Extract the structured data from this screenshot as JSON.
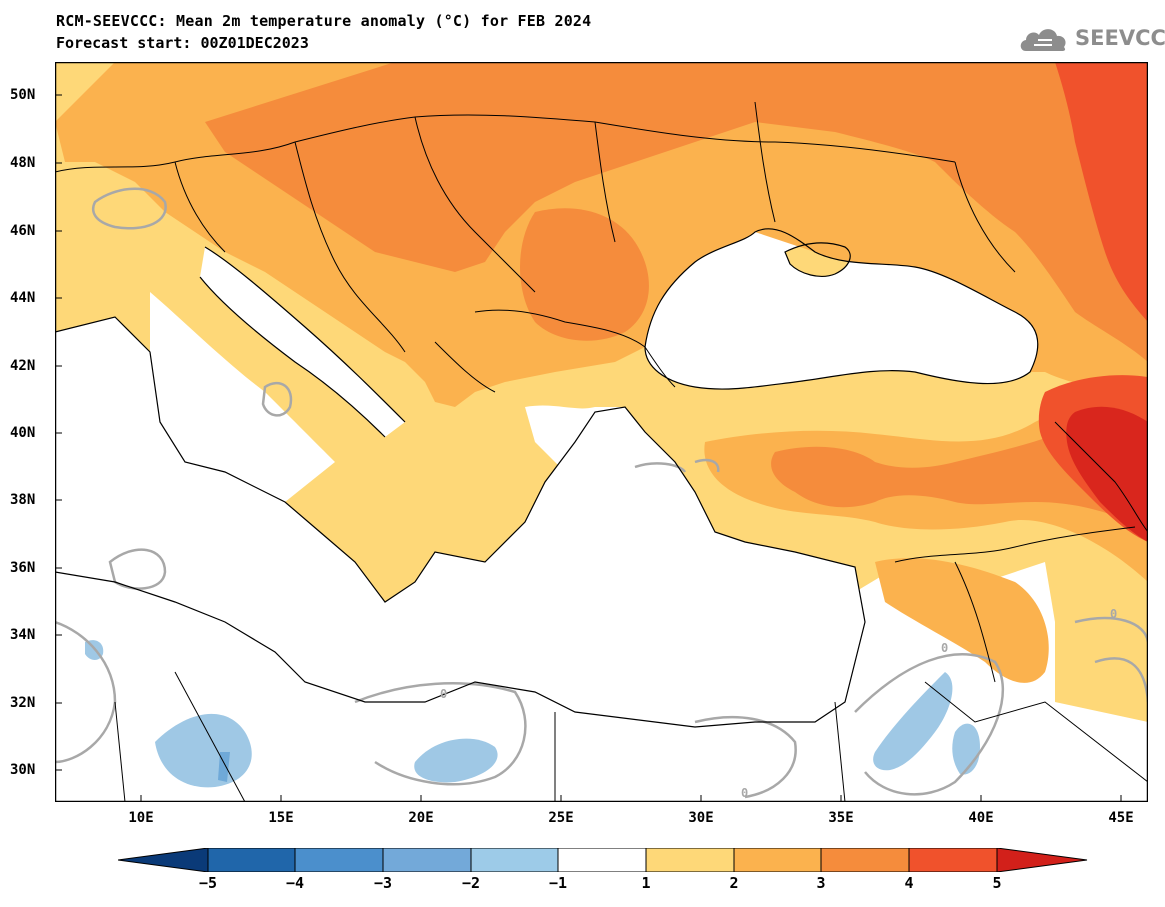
{
  "header": {
    "title": "RCM-SEEVCCC: Mean 2m temperature anomaly (°C) for FEB 2024",
    "subtitle": "Forecast start: 00Z01DEC2023",
    "logo_text": "SEEVCCC"
  },
  "map": {
    "lat_labels": [
      "50N",
      "48N",
      "46N",
      "44N",
      "42N",
      "40N",
      "38N",
      "36N",
      "34N",
      "32N",
      "30N"
    ],
    "lon_labels": [
      "10E",
      "15E",
      "20E",
      "25E",
      "30E",
      "35E",
      "40E",
      "45E"
    ],
    "contour_label": "0",
    "colors": {
      "sea": "#ffffff",
      "c_1_2": "#fed878",
      "c_2_3": "#fbb24e",
      "c_3_4": "#f58c3c",
      "c_4_5": "#f0522c",
      "c_5p": "#d9261d",
      "c_m1_m2": "#9fc8e5",
      "c_m2_m3": "#6fa9d8",
      "zero_contour": "#a8a8a8",
      "border": "#000000"
    }
  },
  "colorbar": {
    "labels": [
      "−5",
      "−4",
      "−3",
      "−2",
      "−1",
      "1",
      "2",
      "3",
      "4",
      "5"
    ],
    "colors": [
      "#0a3a78",
      "#2066aa",
      "#4b8fcc",
      "#73a9d9",
      "#9dcbe8",
      "#ffffff",
      "#fed878",
      "#fbb24e",
      "#f58c3c",
      "#f0522c",
      "#d2201a"
    ]
  }
}
